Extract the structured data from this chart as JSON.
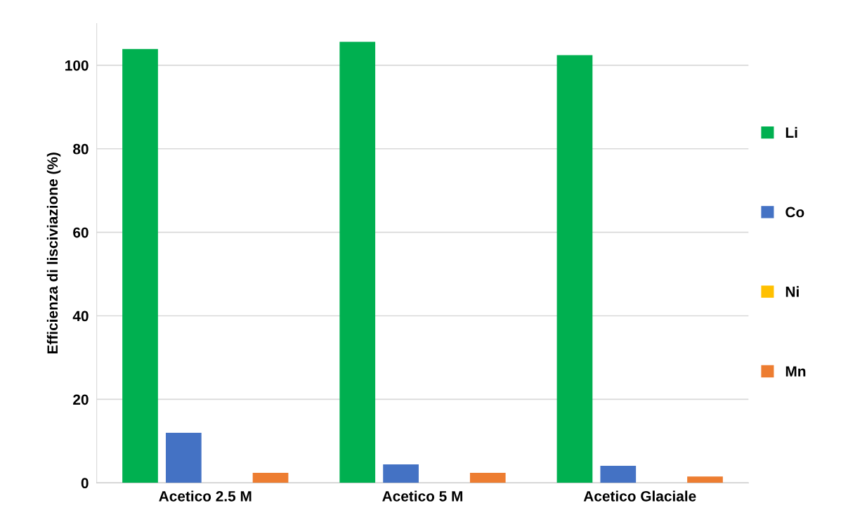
{
  "chart_data": {
    "type": "bar",
    "ylabel": "Efficienza di lisciviazione (%)",
    "categories": [
      "Acetico 2.5 M",
      "Acetico 5 M",
      "Acetico Glaciale"
    ],
    "series": [
      {
        "name": "Li",
        "color": "#00b050",
        "values": [
          103.9,
          105.6,
          102.4
        ]
      },
      {
        "name": "Co",
        "color": "#4472c4",
        "values": [
          12.0,
          4.4,
          4.1
        ]
      },
      {
        "name": "Ni",
        "color": "#ffc000",
        "values": [
          0,
          0,
          0
        ]
      },
      {
        "name": "Mn",
        "color": "#ed7d31",
        "values": [
          2.4,
          2.4,
          1.5
        ]
      }
    ],
    "ylim": [
      0,
      110
    ],
    "yticks": [
      0,
      20,
      40,
      60,
      80,
      100
    ],
    "grid": "y",
    "legend": "right"
  }
}
